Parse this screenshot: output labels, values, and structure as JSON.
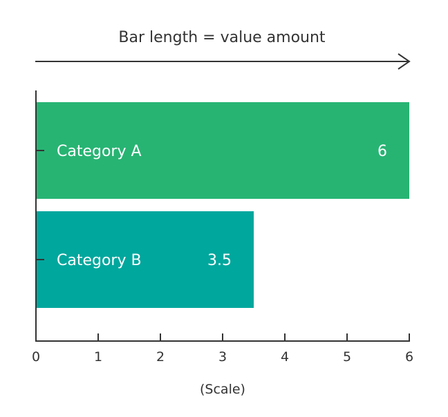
{
  "header": {
    "caption": "Bar length = value amount"
  },
  "chart_data": {
    "type": "bar",
    "orientation": "horizontal",
    "categories": [
      "Category A",
      "Category B"
    ],
    "values": [
      6,
      3.5
    ],
    "value_labels": [
      "6",
      "3.5"
    ],
    "colors": [
      "#27b473",
      "#00a79d"
    ],
    "xlabel": "(Scale)",
    "ylabel": "",
    "xlim": [
      0,
      6
    ],
    "xticks": [
      "0",
      "1",
      "2",
      "3",
      "4",
      "5",
      "6"
    ],
    "grid": false,
    "legend": "none"
  },
  "colors": {
    "axis": "#333333",
    "text": "#333333",
    "bar_text": "#ffffff"
  }
}
